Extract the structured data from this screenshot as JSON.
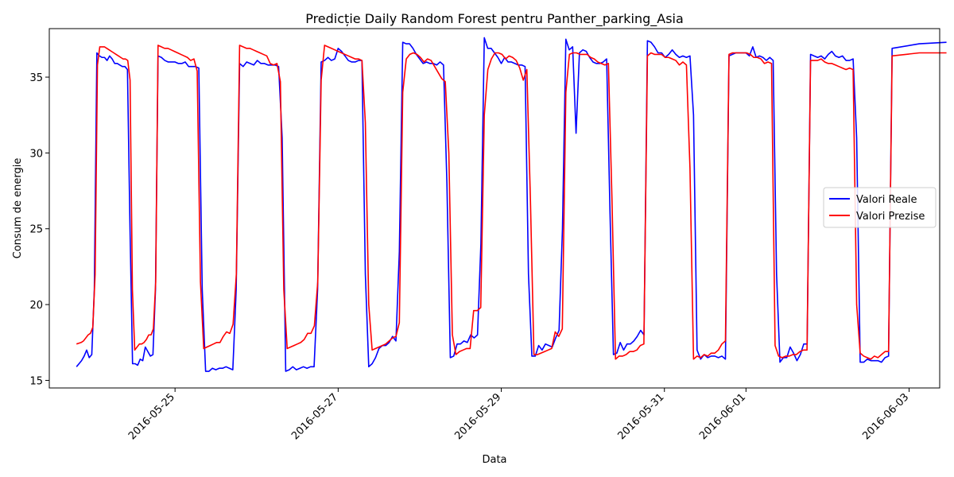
{
  "chart_data": {
    "type": "line",
    "title": "Predicție Daily Random Forest pentru Panther_parking_Asia",
    "xlabel": "Data",
    "ylabel": "Consum de energie",
    "x_type": "day-index",
    "x_start": "2016-05-23 19:00",
    "xlim": [
      "2016-05-23 11:00",
      "2016-06-03 09:00"
    ],
    "ylim": [
      14.5,
      38.2
    ],
    "x_ticks": [
      {
        "label": "2016-05-25",
        "value": "2016-05-25"
      },
      {
        "label": "2016-05-27",
        "value": "2016-05-27"
      },
      {
        "label": "2016-05-29",
        "value": "2016-05-29"
      },
      {
        "label": "2016-05-31",
        "value": "2016-05-31"
      },
      {
        "label": "2016-06-01",
        "value": "2016-06-01"
      },
      {
        "label": "2016-06-03",
        "value": "2016-06-03"
      }
    ],
    "y_ticks": [
      15,
      20,
      25,
      30,
      35
    ],
    "legend_position": "right",
    "grid": false,
    "series": [
      {
        "name": "Valori Reale",
        "color": "#0000ff",
        "days": [
          [
            15.9,
            16.1,
            16.3,
            16.6,
            17.0,
            16.5,
            16.7,
            21.0,
            36.6,
            36.4,
            36.3,
            36.3,
            36.1,
            36.4,
            36.2,
            35.9,
            35.9,
            35.8,
            35.7,
            35.7,
            35.5,
            25.0,
            16.1,
            16.1,
            16.0,
            16.4,
            16.3,
            17.2,
            16.9,
            16.6,
            16.7,
            21.0
          ],
          [
            36.4,
            36.3,
            36.1,
            36.0,
            36.0,
            36.0,
            35.9,
            35.9,
            36.0,
            35.7,
            35.7,
            35.7,
            35.6,
            21.0,
            15.6,
            15.6,
            15.8,
            15.7,
            15.8,
            15.8,
            15.9,
            15.8,
            15.7,
            21.0
          ],
          [
            35.9,
            35.7,
            36.0,
            35.9,
            35.8,
            36.1,
            35.9,
            35.9,
            35.8,
            35.8,
            35.8,
            35.7,
            31.0,
            15.6,
            15.7,
            15.9,
            15.7,
            15.8,
            15.9,
            15.8,
            15.9,
            15.9,
            21.0
          ],
          [
            36.0,
            36.1,
            36.3,
            36.1,
            36.2,
            36.9,
            36.7,
            36.4,
            36.1,
            36.0,
            36.0,
            36.1,
            36.1,
            22.0,
            15.9,
            16.1,
            16.5,
            17.1,
            17.3,
            17.3,
            17.5,
            17.9,
            17.6,
            23.5
          ],
          [
            37.3,
            37.2,
            37.2,
            36.9,
            36.5,
            36.2,
            35.9,
            36.0,
            35.9,
            35.9,
            35.8,
            36.0,
            35.8,
            28.0,
            16.5,
            16.6,
            17.4,
            17.4,
            17.6,
            17.5,
            18.0,
            17.8,
            18.0,
            24.0
          ],
          [
            37.6,
            36.9,
            36.9,
            36.6,
            36.3,
            35.9,
            36.3,
            36.0,
            36.0,
            35.9,
            35.8,
            35.8,
            35.7,
            22.0,
            16.6,
            16.6,
            17.3,
            17.0,
            17.4,
            17.3,
            17.2,
            17.8,
            18.3,
            25.0
          ],
          [
            37.5,
            36.8,
            37.0,
            31.3,
            36.6,
            36.8,
            36.7,
            36.3,
            36.0,
            35.9,
            35.9,
            36.0,
            36.2,
            26.0,
            16.7,
            16.8,
            17.5,
            17.0,
            17.4,
            17.4,
            17.6,
            17.9,
            18.3,
            18.0
          ],
          [
            37.4,
            37.3,
            37.0,
            36.6,
            36.6,
            36.3,
            36.5,
            36.8,
            36.5,
            36.3,
            36.4,
            36.3,
            36.4,
            32.5,
            17.0,
            16.4,
            16.7,
            16.5,
            16.6,
            16.6,
            16.5,
            16.6,
            16.4
          ],
          [
            36.4,
            36.5,
            36.6,
            36.6,
            36.6,
            36.6,
            36.4,
            37.0,
            36.3,
            36.4,
            36.3,
            36.1,
            36.3,
            36.1,
            22.0,
            16.2,
            16.5,
            16.5,
            17.2,
            16.8,
            16.3,
            16.7,
            17.4,
            17.4
          ],
          [
            36.5,
            36.4,
            36.3,
            36.4,
            36.2,
            36.5,
            36.7,
            36.4,
            36.3,
            36.4,
            36.1,
            36.1,
            36.2,
            31.0,
            16.2,
            16.2,
            16.4,
            16.3,
            16.3,
            16.3,
            16.2,
            16.5,
            16.6
          ],
          [
            36.9,
            37.2,
            37.3
          ]
        ]
      },
      {
        "name": "Valori Prezise",
        "color": "#ff0000",
        "days": [
          [
            17.4,
            17.45,
            17.5,
            17.6,
            17.8,
            18.0,
            18.1,
            18.5,
            22.0,
            35.8,
            37.0,
            37.0,
            37.0,
            36.9,
            36.8,
            36.7,
            36.6,
            36.5,
            36.4,
            36.3,
            36.2,
            36.2,
            36.1,
            34.8,
            21.0,
            17.0,
            17.2,
            17.4,
            17.4,
            17.5,
            17.7,
            18.0,
            18.0,
            18.4,
            21.5
          ],
          [
            37.1,
            37.0,
            36.9,
            36.9,
            36.8,
            36.7,
            36.6,
            36.5,
            36.4,
            36.3,
            36.1,
            36.2,
            35.4,
            21.5,
            17.1,
            17.2,
            17.3,
            17.4,
            17.5,
            17.5,
            17.9,
            18.2,
            18.1,
            18.7,
            22.0
          ],
          [
            37.1,
            37.0,
            36.9,
            36.9,
            36.8,
            36.7,
            36.6,
            36.5,
            36.4,
            35.9,
            35.8,
            35.9,
            34.7,
            21.0,
            17.1,
            17.2,
            17.3,
            17.4,
            17.5,
            17.7,
            18.1,
            18.1,
            18.6,
            21.5
          ],
          [
            34.8,
            37.1,
            37.0,
            36.9,
            36.8,
            36.7,
            36.6,
            36.5,
            36.4,
            36.3,
            36.2,
            36.2,
            36.1,
            32.0,
            20.0,
            17.0,
            17.1,
            17.2,
            17.3,
            17.4,
            17.6,
            17.8,
            17.9,
            18.8
          ],
          [
            34.0,
            36.2,
            36.5,
            36.6,
            36.5,
            36.3,
            36.0,
            36.2,
            36.1,
            35.7,
            35.3,
            34.9,
            34.7,
            30.0,
            18.0,
            16.7,
            16.9,
            17.0,
            17.1,
            17.1,
            19.6,
            19.6,
            19.8
          ],
          [
            32.5,
            35.5,
            36.2,
            36.6,
            36.6,
            36.5,
            36.2,
            36.4,
            36.3,
            36.1,
            35.6,
            34.8,
            35.5,
            27.0,
            16.7,
            16.7,
            16.8,
            16.9,
            17.0,
            17.1,
            18.2,
            17.9,
            18.4
          ],
          [
            34.0,
            36.5,
            36.6,
            36.6,
            36.5,
            36.5,
            36.5,
            36.3,
            36.2,
            36.0,
            35.9,
            35.8,
            35.9,
            27.0,
            16.4,
            16.6,
            16.6,
            16.7,
            16.9,
            16.9,
            17.0,
            17.3,
            17.4
          ],
          [
            36.4,
            36.6,
            36.5,
            36.5,
            36.5,
            36.3,
            36.3,
            36.2,
            36.1,
            35.8,
            36.0,
            35.8,
            29.0,
            16.4,
            16.6,
            16.5,
            16.7,
            16.6,
            16.8,
            16.8,
            17.0,
            17.4,
            17.6
          ],
          [
            36.5,
            36.6,
            36.6,
            36.6,
            36.6,
            36.6,
            36.5,
            36.3,
            36.3,
            36.2,
            35.9,
            36.0,
            35.9,
            17.3,
            16.6,
            16.5,
            16.6,
            16.6,
            16.7,
            16.7,
            16.9,
            17.0,
            17.0
          ],
          [
            36.1,
            36.1,
            36.1,
            36.2,
            36.0,
            35.9,
            35.9,
            35.8,
            35.7,
            35.6,
            35.5,
            35.6,
            35.5,
            20.0,
            16.8,
            16.6,
            16.5,
            16.4,
            16.6,
            16.5,
            16.7,
            16.9,
            16.9
          ],
          [
            36.4,
            36.6,
            36.6
          ]
        ]
      }
    ]
  }
}
